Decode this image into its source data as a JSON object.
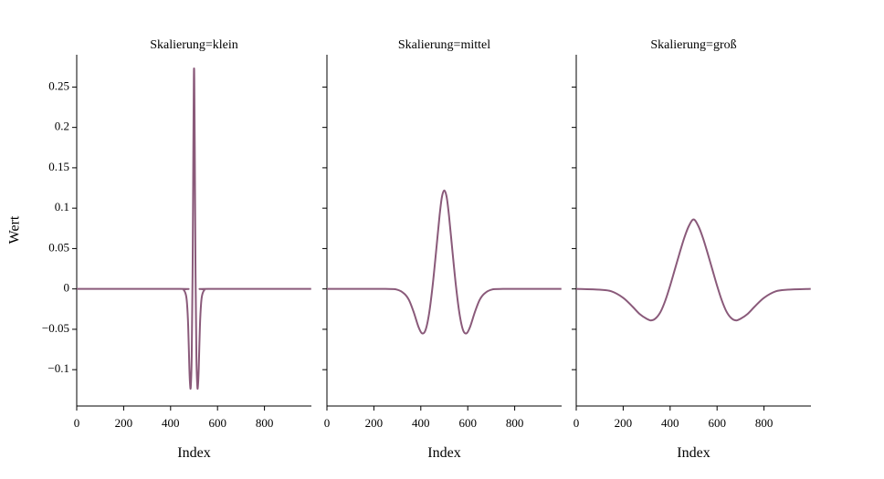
{
  "chart_data": {
    "type": "line",
    "ylabel": "Wert",
    "line_color": "#8a5a7a",
    "xlim": [
      0,
      1000
    ],
    "ylim": [
      -0.145,
      0.29
    ],
    "x_ticks": [
      0,
      200,
      400,
      600,
      800
    ],
    "y_ticks": [
      {
        "value": 0.25,
        "label": "0.25"
      },
      {
        "value": 0.2,
        "label": "0.2"
      },
      {
        "value": 0.15,
        "label": "0.15"
      },
      {
        "value": 0.1,
        "label": "0.1"
      },
      {
        "value": 0.05,
        "label": "0.05"
      },
      {
        "value": 0,
        "label": "0"
      },
      {
        "value": -0.05,
        "label": "−0.05"
      },
      {
        "value": -0.1,
        "label": "−0.1"
      }
    ],
    "panels": [
      {
        "title": "Skalierung=klein",
        "xlabel": "Index",
        "x": [
          0,
          440,
          455,
          465,
          470,
          475,
          480,
          483,
          486,
          490,
          494,
          497,
          499,
          500,
          501,
          503,
          506,
          510,
          514,
          517,
          520,
          525,
          530,
          535,
          545,
          560,
          999
        ],
        "y": [
          0,
          0,
          -0.001,
          -0.007,
          -0.018,
          -0.046,
          -0.098,
          -0.118,
          -0.121,
          -0.083,
          0.031,
          0.176,
          0.258,
          0.273,
          0.258,
          0.176,
          0.031,
          -0.083,
          -0.121,
          -0.118,
          -0.098,
          -0.046,
          -0.018,
          -0.007,
          -0.001,
          0,
          0
        ]
      },
      {
        "title": "Skalierung=mittel",
        "xlabel": "Index",
        "x": [
          0,
          250,
          300,
          330,
          350,
          370,
          390,
          405,
          420,
          435,
          450,
          465,
          480,
          490,
          500,
          510,
          520,
          535,
          550,
          565,
          580,
          595,
          610,
          630,
          650,
          670,
          700,
          750,
          999
        ],
        "y": [
          0,
          0,
          -0.001,
          -0.006,
          -0.014,
          -0.029,
          -0.047,
          -0.055,
          -0.051,
          -0.031,
          0.003,
          0.046,
          0.091,
          0.114,
          0.122,
          0.114,
          0.091,
          0.046,
          0.003,
          -0.031,
          -0.051,
          -0.055,
          -0.047,
          -0.029,
          -0.014,
          -0.006,
          -0.001,
          0,
          0
        ]
      },
      {
        "title": "Skalierung=groß",
        "xlabel": "Index",
        "x": [
          0,
          100,
          150,
          200,
          240,
          270,
          300,
          320,
          340,
          360,
          380,
          400,
          420,
          440,
          460,
          480,
          500,
          520,
          540,
          560,
          580,
          600,
          620,
          640,
          660,
          680,
          700,
          730,
          760,
          800,
          850,
          900,
          999
        ],
        "y": [
          0,
          -0.001,
          -0.003,
          -0.011,
          -0.022,
          -0.031,
          -0.037,
          -0.039,
          -0.036,
          -0.028,
          -0.014,
          0.004,
          0.024,
          0.044,
          0.063,
          0.078,
          0.086,
          0.078,
          0.063,
          0.044,
          0.024,
          0.004,
          -0.014,
          -0.028,
          -0.036,
          -0.039,
          -0.037,
          -0.031,
          -0.022,
          -0.011,
          -0.003,
          -0.001,
          0
        ]
      }
    ]
  }
}
